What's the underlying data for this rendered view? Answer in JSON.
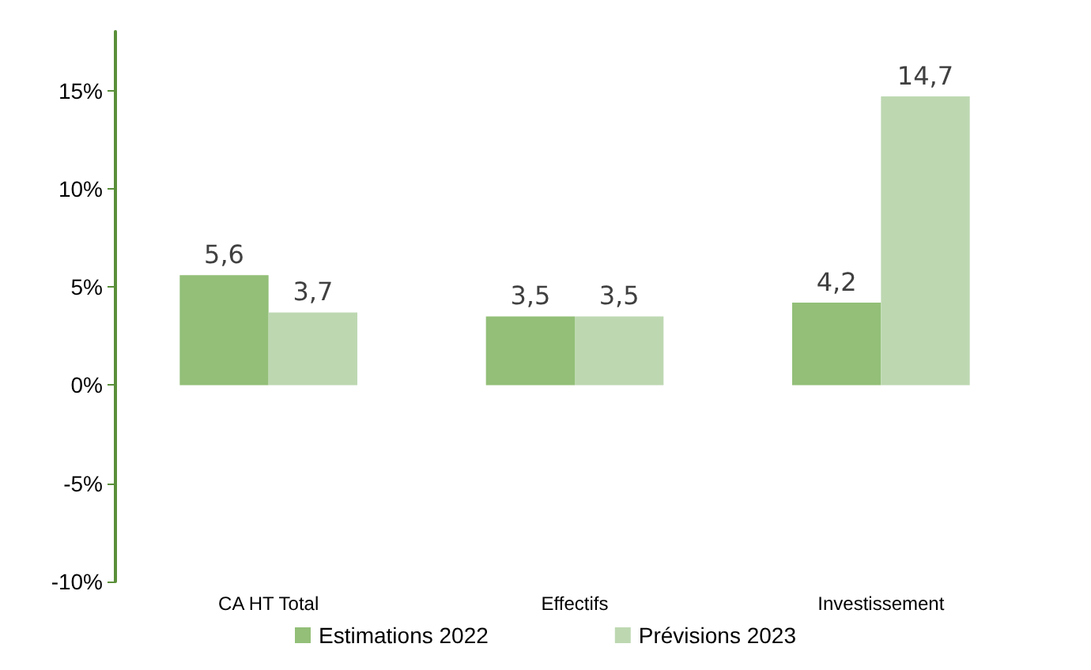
{
  "chart_data": {
    "type": "bar",
    "categories": [
      "CA HT Total",
      "Effectifs",
      "Investissement"
    ],
    "series": [
      {
        "name": "Estimations 2022",
        "color": "#93bf78",
        "values": [
          5.6,
          3.5,
          4.2
        ],
        "value_labels": [
          "5,6",
          "3,5",
          "4,2"
        ]
      },
      {
        "name": "Prévisions 2023",
        "color": "#bdd8b1",
        "values": [
          3.7,
          3.5,
          14.7
        ],
        "value_labels": [
          "3,7",
          "3,5",
          "14,7"
        ]
      }
    ],
    "ylim": [
      -10,
      18
    ],
    "yticks": [
      {
        "value": -10,
        "label": "-10%"
      },
      {
        "value": -5,
        "label": "-5%"
      },
      {
        "value": 0,
        "label": "0%"
      },
      {
        "value": 5,
        "label": "5%"
      },
      {
        "value": 10,
        "label": "10%"
      },
      {
        "value": 15,
        "label": "15%"
      }
    ],
    "grid": false,
    "legend": "bottom"
  }
}
